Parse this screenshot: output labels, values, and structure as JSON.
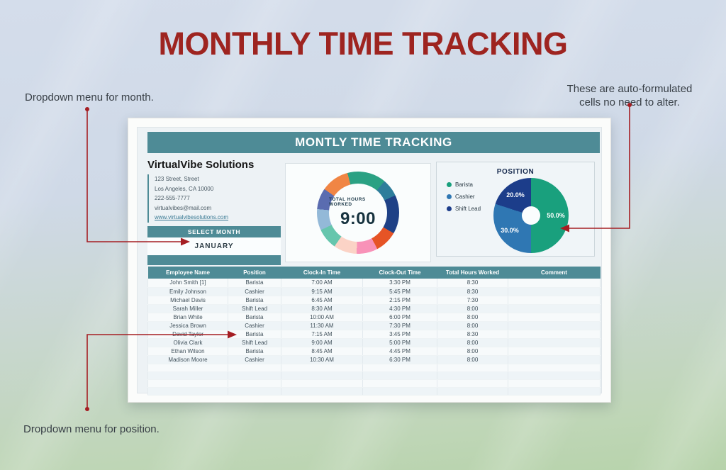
{
  "page": {
    "title": "MONTHLY TIME TRACKING",
    "annotations": {
      "month": "Dropdown menu for month.",
      "auto_line1": "These are auto-formulated",
      "auto_line2": "cells no need to alter.",
      "position": "Dropdown menu for position."
    }
  },
  "sheet": {
    "header_title": "MONTLY TIME TRACKING",
    "company": {
      "name": "VirtualVibe Solutions",
      "address1": "123 Street, Street",
      "address2": "Los Angeles, CA 10000",
      "phone": "222-555-7777",
      "email": "virtualvibes@mail.com",
      "website": "www.virtualvibesolutions.com"
    },
    "select_month_label": "SELECT MONTH",
    "selected_month": "JANUARY",
    "table": {
      "columns": [
        "Employee Name",
        "Position",
        "Clock-In Time",
        "Clock-Out Time",
        "Total Hours Worked",
        "Comment"
      ],
      "rows": [
        [
          "John Smith [1]",
          "Barista",
          "7:00 AM",
          "3:30 PM",
          "8:30",
          ""
        ],
        [
          "Emily Johnson",
          "Cashier",
          "9:15 AM",
          "5:45 PM",
          "8:30",
          ""
        ],
        [
          "Michael Davis",
          "Barista",
          "6:45 AM",
          "2:15 PM",
          "7:30",
          ""
        ],
        [
          "Sarah Miller",
          "Shift Lead",
          "8:30 AM",
          "4:30 PM",
          "8:00",
          ""
        ],
        [
          "Brian White",
          "Barista",
          "10:00 AM",
          "6:00 PM",
          "8:00",
          ""
        ],
        [
          "Jessica Brown",
          "Cashier",
          "11:30 AM",
          "7:30 PM",
          "8:00",
          ""
        ],
        [
          "David Taylor",
          "Barista",
          "7:15 AM",
          "3:45 PM",
          "8:30",
          ""
        ],
        [
          "Olivia Clark",
          "Shift Lead",
          "9:00 AM",
          "5:00 PM",
          "8:00",
          ""
        ],
        [
          "Ethan Wilson",
          "Barista",
          "8:45 AM",
          "4:45 PM",
          "8:00",
          ""
        ],
        [
          "Madison Moore",
          "Cashier",
          "10:30 AM",
          "6:30 PM",
          "8:00",
          ""
        ]
      ],
      "empty_row_count": 4
    }
  },
  "chart_data": [
    {
      "type": "donut",
      "center_label": "TOTAL HOURS WORKED",
      "center_value": "9:00",
      "note": "decorative multicolor ring, segments in degrees clockwise from top",
      "segments": [
        {
          "color": "#2aa183",
          "start": 0,
          "end": 40
        },
        {
          "color": "#2d7d9b",
          "start": 40,
          "end": 65
        },
        {
          "color": "#1f4186",
          "start": 65,
          "end": 120
        },
        {
          "color": "#e65426",
          "start": 120,
          "end": 152
        },
        {
          "color": "#f892b8",
          "start": 152,
          "end": 182
        },
        {
          "color": "#fbd3c6",
          "start": 182,
          "end": 215
        },
        {
          "color": "#66c6ad",
          "start": 215,
          "end": 245
        },
        {
          "color": "#93b9d8",
          "start": 245,
          "end": 275
        },
        {
          "color": "#5a6cb0",
          "start": 275,
          "end": 305
        },
        {
          "color": "#f08544",
          "start": 305,
          "end": 345
        },
        {
          "color": "#2aa183",
          "start": 345,
          "end": 360
        }
      ]
    },
    {
      "type": "pie",
      "title": "POSITION",
      "legend_position": "left",
      "slices": [
        {
          "label": "Barista",
          "value_pct": 50.0,
          "display": "50.0%",
          "color": "#19a07d"
        },
        {
          "label": "Cashier",
          "value_pct": 30.0,
          "display": "30.0%",
          "color": "#2f77b3"
        },
        {
          "label": "Shift Lead",
          "value_pct": 20.0,
          "display": "20.0%",
          "color": "#1c3d8a"
        }
      ]
    }
  ],
  "colors": {
    "teal_accent": "#4e8b96",
    "title_red": "#9e2420",
    "arrow_red": "#a51e23"
  }
}
